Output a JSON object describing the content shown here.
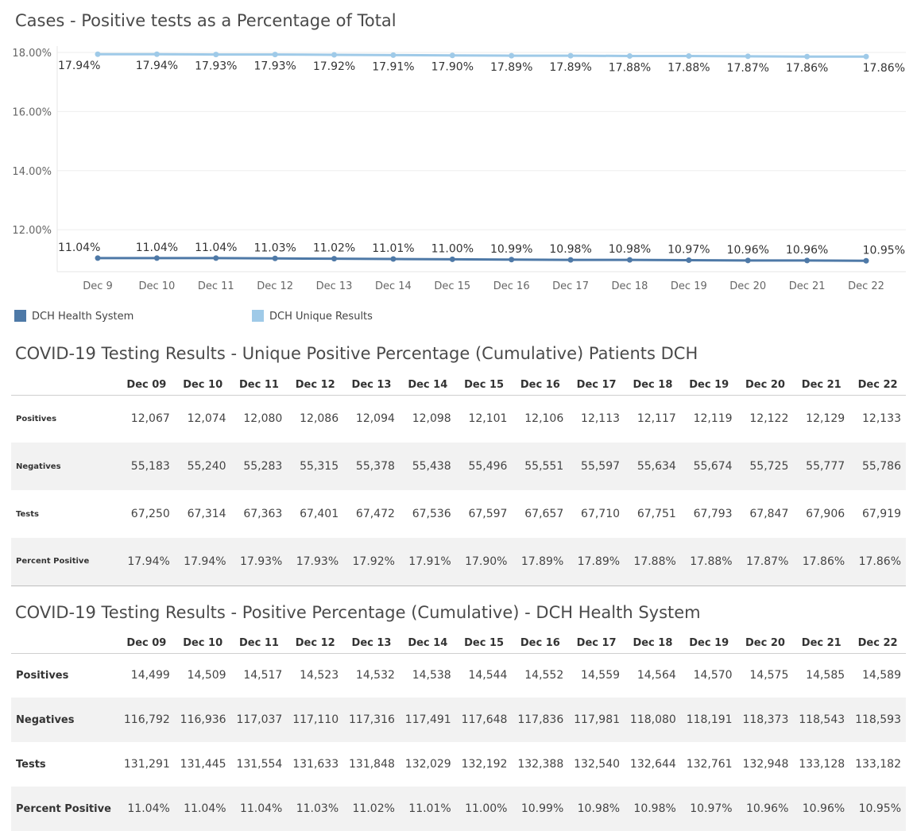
{
  "chart_data": {
    "type": "line",
    "title": "Cases - Positive tests as a Percentage of Total",
    "categories": [
      "Dec 9",
      "Dec 10",
      "Dec 11",
      "Dec 12",
      "Dec 13",
      "Dec 14",
      "Dec 15",
      "Dec 16",
      "Dec 17",
      "Dec 18",
      "Dec 19",
      "Dec 20",
      "Dec 21",
      "Dec 22"
    ],
    "yticks": [
      "18.00%",
      "16.00%",
      "14.00%",
      "12.00%"
    ],
    "ylim": [
      10.9,
      18.1
    ],
    "grid": true,
    "legend_position": "bottom-left",
    "series": [
      {
        "name": "DCH Unique Results",
        "color": "#9fcae8",
        "values": [
          17.94,
          17.94,
          17.93,
          17.93,
          17.92,
          17.91,
          17.9,
          17.89,
          17.89,
          17.88,
          17.88,
          17.87,
          17.86,
          17.86
        ],
        "labels": [
          "17.94%",
          "17.94%",
          "17.93%",
          "17.93%",
          "17.92%",
          "17.91%",
          "17.90%",
          "17.89%",
          "17.89%",
          "17.88%",
          "17.88%",
          "17.87%",
          "17.86%",
          "17.86%"
        ]
      },
      {
        "name": "DCH Health System",
        "color": "#4e79a7",
        "values": [
          11.04,
          11.04,
          11.04,
          11.03,
          11.02,
          11.01,
          11.0,
          10.99,
          10.98,
          10.98,
          10.97,
          10.96,
          10.96,
          10.95
        ],
        "labels": [
          "11.04%",
          "11.04%",
          "11.04%",
          "11.03%",
          "11.02%",
          "11.01%",
          "11.00%",
          "10.99%",
          "10.98%",
          "10.98%",
          "10.97%",
          "10.96%",
          "10.96%",
          "10.95%"
        ]
      }
    ]
  },
  "legend": {
    "health_system": {
      "label": "DCH Health System",
      "color": "#4e79a7"
    },
    "unique": {
      "label": "DCH Unique Results",
      "color": "#9fcae8"
    }
  },
  "unique_table": {
    "title": "COVID-19 Testing Results - Unique Positive Percentage (Cumulative) Patients DCH",
    "columns": [
      "Dec 09",
      "Dec 10",
      "Dec 11",
      "Dec 12",
      "Dec 13",
      "Dec 14",
      "Dec 15",
      "Dec 16",
      "Dec 17",
      "Dec 18",
      "Dec 19",
      "Dec 20",
      "Dec 21",
      "Dec 22"
    ],
    "rows": [
      {
        "label": "Positives",
        "values": [
          "12,067",
          "12,074",
          "12,080",
          "12,086",
          "12,094",
          "12,098",
          "12,101",
          "12,106",
          "12,113",
          "12,117",
          "12,119",
          "12,122",
          "12,129",
          "12,133"
        ]
      },
      {
        "label": "Negatives",
        "values": [
          "55,183",
          "55,240",
          "55,283",
          "55,315",
          "55,378",
          "55,438",
          "55,496",
          "55,551",
          "55,597",
          "55,634",
          "55,674",
          "55,725",
          "55,777",
          "55,786"
        ]
      },
      {
        "label": "Tests",
        "values": [
          "67,250",
          "67,314",
          "67,363",
          "67,401",
          "67,472",
          "67,536",
          "67,597",
          "67,657",
          "67,710",
          "67,751",
          "67,793",
          "67,847",
          "67,906",
          "67,919"
        ]
      },
      {
        "label": "Percent Positive",
        "values": [
          "17.94%",
          "17.94%",
          "17.93%",
          "17.93%",
          "17.92%",
          "17.91%",
          "17.90%",
          "17.89%",
          "17.89%",
          "17.88%",
          "17.88%",
          "17.87%",
          "17.86%",
          "17.86%"
        ]
      }
    ]
  },
  "system_table": {
    "title": "COVID-19 Testing Results - Positive Percentage (Cumulative) - DCH Health System",
    "columns": [
      "Dec 09",
      "Dec 10",
      "Dec 11",
      "Dec 12",
      "Dec 13",
      "Dec 14",
      "Dec 15",
      "Dec 16",
      "Dec 17",
      "Dec 18",
      "Dec 19",
      "Dec 20",
      "Dec 21",
      "Dec 22"
    ],
    "rows": [
      {
        "label": "Positives",
        "values": [
          "14,499",
          "14,509",
          "14,517",
          "14,523",
          "14,532",
          "14,538",
          "14,544",
          "14,552",
          "14,559",
          "14,564",
          "14,570",
          "14,575",
          "14,585",
          "14,589"
        ]
      },
      {
        "label": "Negatives",
        "values": [
          "116,792",
          "116,936",
          "117,037",
          "117,110",
          "117,316",
          "117,491",
          "117,648",
          "117,836",
          "117,981",
          "118,080",
          "118,191",
          "118,373",
          "118,543",
          "118,593"
        ]
      },
      {
        "label": "Tests",
        "values": [
          "131,291",
          "131,445",
          "131,554",
          "131,633",
          "131,848",
          "132,029",
          "132,192",
          "132,388",
          "132,540",
          "132,644",
          "132,761",
          "132,948",
          "133,128",
          "133,182"
        ]
      },
      {
        "label": "Percent Positive",
        "values": [
          "11.04%",
          "11.04%",
          "11.04%",
          "11.03%",
          "11.02%",
          "11.01%",
          "11.00%",
          "10.99%",
          "10.98%",
          "10.98%",
          "10.97%",
          "10.96%",
          "10.96%",
          "10.95%"
        ]
      }
    ]
  }
}
